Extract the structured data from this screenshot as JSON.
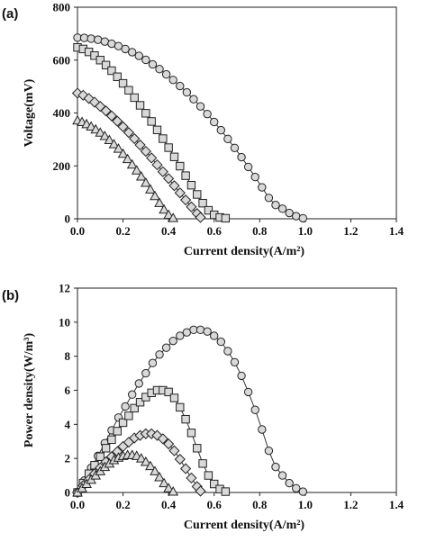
{
  "chart_data": [
    {
      "type": "scatter",
      "panel_label": "(a)",
      "xlabel": "Current density(A/m²)",
      "ylabel": "Voltage(mV)",
      "xlim": [
        0,
        1.4
      ],
      "ylim": [
        0,
        800
      ],
      "xticks": [
        "0.0",
        "0.2",
        "0.4",
        "0.6",
        "0.8",
        "1.0",
        "1.2",
        "1.4"
      ],
      "yticks": [
        "0",
        "200",
        "400",
        "600",
        "800"
      ],
      "grid": false,
      "series": [
        {
          "marker": "circle",
          "x": [
            0,
            0.03,
            0.06,
            0.09,
            0.12,
            0.15,
            0.18,
            0.21,
            0.24,
            0.27,
            0.3,
            0.33,
            0.36,
            0.39,
            0.42,
            0.45,
            0.48,
            0.51,
            0.54,
            0.57,
            0.6,
            0.63,
            0.66,
            0.69,
            0.72,
            0.75,
            0.78,
            0.81,
            0.84,
            0.87,
            0.9,
            0.93,
            0.96,
            0.99
          ],
          "y": [
            685,
            684,
            681,
            677,
            670,
            662,
            653,
            642,
            630,
            616,
            601,
            584,
            566,
            546,
            525,
            502,
            478,
            452,
            425,
            396,
            366,
            335,
            302,
            268,
            233,
            196,
            158,
            119,
            79,
            52,
            38,
            22,
            10,
            2
          ]
        },
        {
          "marker": "square",
          "x": [
            0,
            0.025,
            0.05,
            0.075,
            0.1,
            0.125,
            0.15,
            0.175,
            0.2,
            0.225,
            0.25,
            0.275,
            0.3,
            0.325,
            0.35,
            0.375,
            0.4,
            0.425,
            0.45,
            0.475,
            0.5,
            0.525,
            0.55,
            0.575,
            0.6,
            0.625,
            0.65
          ],
          "y": [
            648,
            642,
            631,
            617,
            600,
            581,
            560,
            537,
            512,
            486,
            458,
            429,
            399,
            368,
            336,
            303,
            269,
            234,
            199,
            163,
            127,
            92,
            59,
            32,
            15,
            5,
            2
          ]
        },
        {
          "marker": "diamond",
          "x": [
            0,
            0.025,
            0.05,
            0.075,
            0.1,
            0.125,
            0.15,
            0.175,
            0.2,
            0.225,
            0.25,
            0.275,
            0.3,
            0.325,
            0.35,
            0.375,
            0.4,
            0.425,
            0.45,
            0.475,
            0.5,
            0.525,
            0.54
          ],
          "y": [
            475,
            467,
            455,
            441,
            425,
            408,
            389,
            369,
            348,
            326,
            303,
            279,
            255,
            230,
            204,
            178,
            152,
            125,
            98,
            71,
            45,
            20,
            5
          ]
        },
        {
          "marker": "triangle",
          "x": [
            0,
            0.02,
            0.04,
            0.06,
            0.08,
            0.1,
            0.12,
            0.14,
            0.16,
            0.18,
            0.2,
            0.22,
            0.24,
            0.26,
            0.28,
            0.3,
            0.32,
            0.34,
            0.36,
            0.38,
            0.4,
            0.42
          ],
          "y": [
            372,
            366,
            358,
            349,
            338,
            326,
            313,
            298,
            282,
            265,
            246,
            226,
            205,
            183,
            160,
            136,
            111,
            86,
            60,
            35,
            15,
            3
          ]
        }
      ]
    },
    {
      "type": "scatter",
      "panel_label": "(b)",
      "xlabel": "Current density(A/m²)",
      "ylabel": "Power density(W/m³)",
      "xlim": [
        0,
        1.4
      ],
      "ylim": [
        0,
        12
      ],
      "xticks": [
        "0.0",
        "0.2",
        "0.4",
        "0.6",
        "0.8",
        "1.0",
        "1.2",
        "1.4"
      ],
      "yticks": [
        "0",
        "2",
        "4",
        "6",
        "8",
        "10",
        "12"
      ],
      "grid": false,
      "series": [
        {
          "marker": "circle",
          "x": [
            0,
            0.03,
            0.06,
            0.09,
            0.12,
            0.15,
            0.18,
            0.21,
            0.24,
            0.27,
            0.3,
            0.33,
            0.36,
            0.39,
            0.42,
            0.45,
            0.48,
            0.51,
            0.54,
            0.57,
            0.6,
            0.63,
            0.66,
            0.69,
            0.72,
            0.75,
            0.78,
            0.81,
            0.84,
            0.87,
            0.9,
            0.93,
            0.96,
            0.99
          ],
          "y": [
            0,
            0.7,
            1.45,
            2.15,
            2.9,
            3.65,
            4.4,
            5.05,
            5.75,
            6.4,
            7.0,
            7.6,
            8.1,
            8.5,
            8.9,
            9.2,
            9.4,
            9.55,
            9.55,
            9.45,
            9.2,
            8.85,
            8.3,
            7.65,
            6.85,
            5.9,
            4.85,
            3.7,
            2.45,
            1.5,
            1.0,
            0.55,
            0.25,
            0.05
          ]
        },
        {
          "marker": "square",
          "x": [
            0,
            0.025,
            0.05,
            0.075,
            0.1,
            0.125,
            0.15,
            0.175,
            0.2,
            0.225,
            0.25,
            0.275,
            0.3,
            0.325,
            0.35,
            0.375,
            0.4,
            0.425,
            0.45,
            0.475,
            0.5,
            0.525,
            0.55,
            0.575,
            0.6,
            0.625,
            0.65
          ],
          "y": [
            0,
            0.55,
            1.1,
            1.6,
            2.1,
            2.6,
            3.1,
            3.6,
            4.1,
            4.5,
            4.95,
            5.3,
            5.6,
            5.85,
            6.0,
            6.0,
            5.9,
            5.55,
            5.0,
            4.3,
            3.5,
            2.6,
            1.7,
            1.0,
            0.5,
            0.2,
            0.05
          ]
        },
        {
          "marker": "diamond",
          "x": [
            0,
            0.025,
            0.05,
            0.075,
            0.1,
            0.125,
            0.15,
            0.175,
            0.2,
            0.225,
            0.25,
            0.275,
            0.3,
            0.325,
            0.35,
            0.375,
            0.4,
            0.425,
            0.45,
            0.475,
            0.5,
            0.525,
            0.54
          ],
          "y": [
            0,
            0.4,
            0.75,
            1.1,
            1.45,
            1.8,
            2.1,
            2.4,
            2.7,
            2.95,
            3.2,
            3.35,
            3.45,
            3.45,
            3.35,
            3.15,
            2.85,
            2.45,
            1.95,
            1.4,
            0.85,
            0.35,
            0.08
          ]
        },
        {
          "marker": "triangle",
          "x": [
            0,
            0.02,
            0.04,
            0.06,
            0.08,
            0.1,
            0.12,
            0.14,
            0.16,
            0.18,
            0.2,
            0.22,
            0.24,
            0.26,
            0.28,
            0.3,
            0.32,
            0.34,
            0.36,
            0.38,
            0.4,
            0.42
          ],
          "y": [
            0,
            0.25,
            0.5,
            0.75,
            1.0,
            1.25,
            1.5,
            1.7,
            1.9,
            2.05,
            2.15,
            2.2,
            2.2,
            2.15,
            2.0,
            1.8,
            1.55,
            1.25,
            0.9,
            0.55,
            0.25,
            0.05
          ]
        }
      ]
    }
  ]
}
